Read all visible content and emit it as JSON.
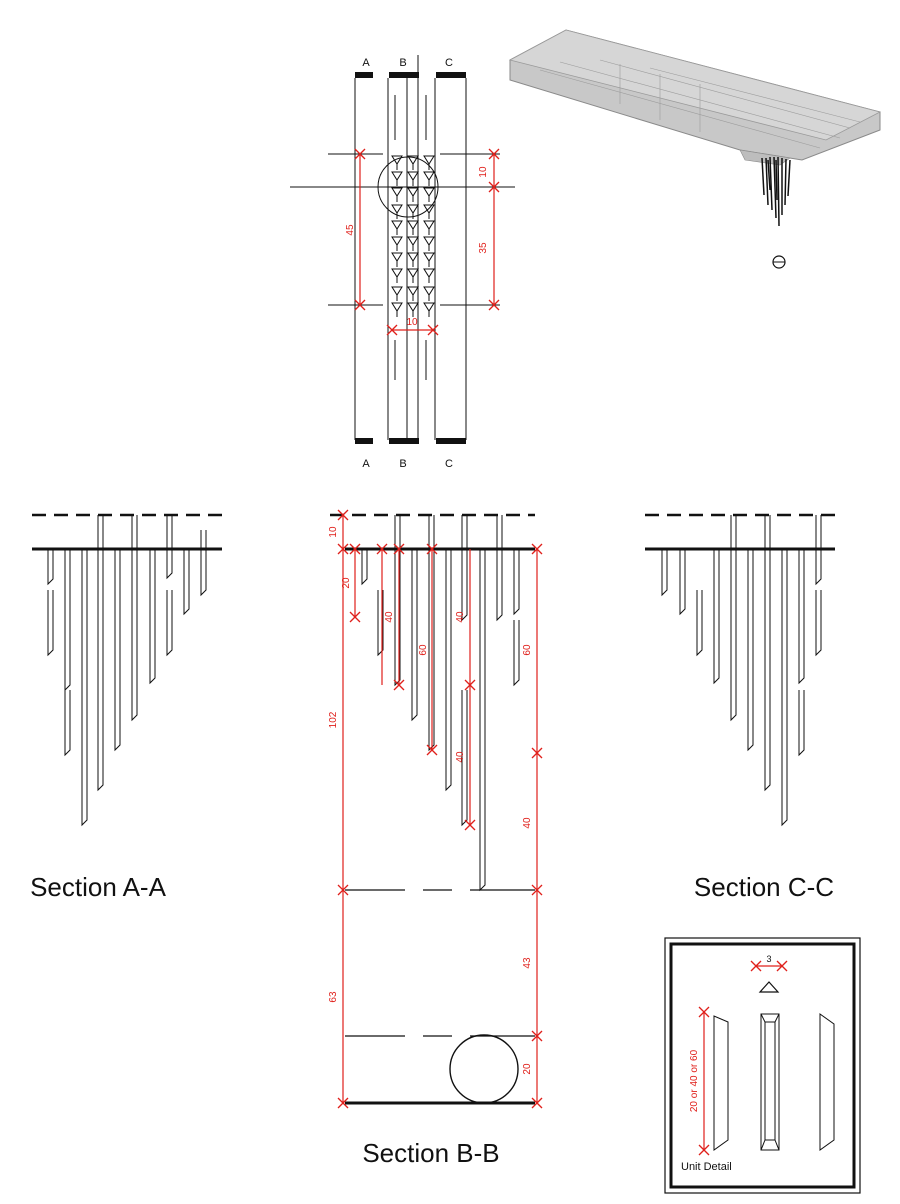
{
  "colors": {
    "line": "#111111",
    "dimension": "#e0201b",
    "render": "#a9a9a9"
  },
  "plan": {
    "section_markers": {
      "a": "A",
      "b": "B",
      "c": "C"
    },
    "dims": {
      "top_offset": "10",
      "total_length": "45",
      "lower_length": "35",
      "spacing": "10"
    }
  },
  "sections": {
    "aa": {
      "title": "Section A-A"
    },
    "bb": {
      "title": "Section B-B",
      "dims": {
        "top_gap": "10",
        "first_unit": "20",
        "second_unit": "40",
        "third_unit": "60",
        "fourth_unit": "40",
        "right_upper": "60",
        "lower_unit": "40",
        "right_lower": "40",
        "overall": "102",
        "base_offset": "63",
        "base_right": "43",
        "ball_height": "20"
      }
    },
    "cc": {
      "title": "Section C-C"
    }
  },
  "unit_detail": {
    "title": "Unit Detail",
    "width_dim": "3",
    "length_dim": "20 or 40 or 60"
  }
}
